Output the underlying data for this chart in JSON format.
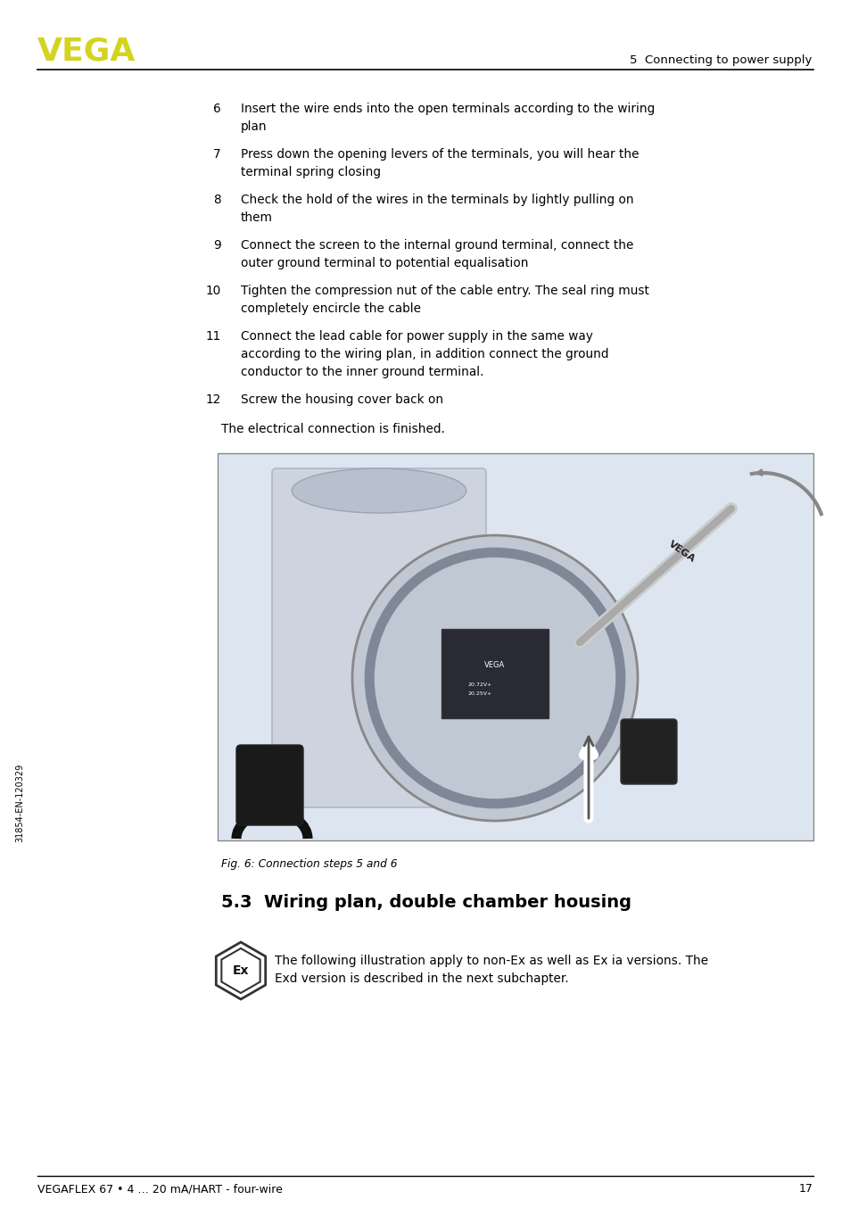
{
  "page_bg": "#ffffff",
  "line_color": "#000000",
  "vega_logo_color": "#d4d420",
  "header_right_text": "5  Connecting to power supply",
  "footer_left_text": "VEGAFLEX 67 • 4 … 20 mA/HART - four-wire",
  "footer_right_text": "17",
  "sidebar_text": "31854-EN-120329",
  "numbered_items": [
    {
      "num": "6",
      "lines": [
        "Insert the wire ends into the open terminals according to the wiring",
        "plan"
      ]
    },
    {
      "num": "7",
      "lines": [
        "Press down the opening levers of the terminals, you will hear the",
        "terminal spring closing"
      ]
    },
    {
      "num": "8",
      "lines": [
        "Check the hold of the wires in the terminals by lightly pulling on",
        "them"
      ]
    },
    {
      "num": "9",
      "lines": [
        "Connect the screen to the internal ground terminal, connect the",
        "outer ground terminal to potential equalisation"
      ]
    },
    {
      "num": "10",
      "lines": [
        "Tighten the compression nut of the cable entry. The seal ring must",
        "completely encircle the cable"
      ]
    },
    {
      "num": "11",
      "lines": [
        "Connect the lead cable for power supply in the same way",
        "according to the wiring plan, in addition connect the ground",
        "conductor to the inner ground terminal."
      ]
    },
    {
      "num": "12",
      "lines": [
        "Screw the housing cover back on"
      ]
    }
  ],
  "closing_text": "The electrical connection is finished.",
  "fig_caption": "Fig. 6: Connection steps 5 and 6",
  "section_heading": "5.3  Wiring plan, double chamber housing",
  "section_body_line1": "The following illustration apply to non-Ex as well as Ex ia versions. The",
  "section_body_line2": "Exd version is described in the next subchapter.",
  "image_bg": "#dde6f0",
  "image_border": "#888888",
  "text_color": "#000000"
}
